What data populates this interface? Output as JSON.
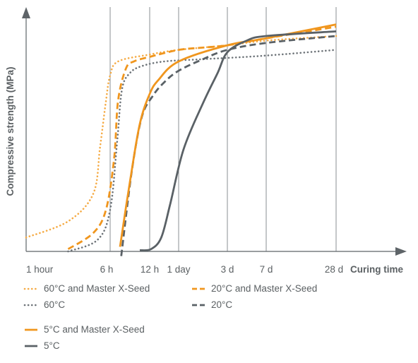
{
  "chart_data": {
    "type": "line",
    "xlabel": "Curing time",
    "ylabel": "Compressive strength (MPa)",
    "x_ticks": [
      "1 hour",
      "6 h",
      "12 h",
      "1 day",
      "3 d",
      "7 d",
      "28 d"
    ],
    "x_positions": [
      0,
      1,
      2,
      3,
      4,
      5,
      6
    ],
    "x_scale": "nonlinear (categorical time marks)",
    "y_scale": "relative, no ticks",
    "ylim": [
      0,
      100
    ],
    "grid": "vertical lines at each time mark except 1 hour",
    "colors": {
      "orange": "#f0961e",
      "gray": "#5a6166",
      "dotted_gray": "#6e7479"
    },
    "series": [
      {
        "name": "60°C and Master X-Seed",
        "color": "#f5ab45",
        "dash": "dotted",
        "points": [
          [
            0,
            6
          ],
          [
            0.5,
            13
          ],
          [
            0.8,
            25
          ],
          [
            0.88,
            45
          ],
          [
            0.95,
            65
          ],
          [
            1.0,
            76
          ],
          [
            1.2,
            82
          ],
          [
            2.0,
            85
          ],
          [
            3.0,
            87
          ],
          [
            4.0,
            89
          ],
          [
            5.0,
            91
          ],
          [
            6.0,
            93
          ]
        ]
      },
      {
        "name": "20°C and Master X-Seed",
        "color": "#f0961e",
        "dash": "dashed",
        "points": [
          [
            0.5,
            1
          ],
          [
            0.8,
            8
          ],
          [
            0.95,
            18
          ],
          [
            1.1,
            40
          ],
          [
            1.2,
            65
          ],
          [
            1.4,
            79
          ],
          [
            1.6,
            82
          ],
          [
            2.0,
            84
          ],
          [
            3.0,
            87
          ],
          [
            3.5,
            88
          ],
          [
            4.0,
            89
          ],
          [
            5.0,
            92
          ],
          [
            6.0,
            97
          ]
        ]
      },
      {
        "name": "60°C",
        "color": "#6e7479",
        "dash": "dotted",
        "points": [
          [
            0.5,
            0
          ],
          [
            0.85,
            5
          ],
          [
            1.0,
            18
          ],
          [
            1.18,
            48
          ],
          [
            1.3,
            70
          ],
          [
            1.5,
            77
          ],
          [
            1.8,
            80
          ],
          [
            2.5,
            82
          ],
          [
            3.5,
            83
          ],
          [
            4.5,
            84
          ],
          [
            5.2,
            85
          ],
          [
            6.0,
            87
          ]
        ]
      },
      {
        "name": "20°C",
        "color": "#5a6166",
        "dash": "dashed",
        "points": [
          [
            1.28,
            -2
          ],
          [
            1.55,
            35
          ],
          [
            1.8,
            58
          ],
          [
            2.1,
            67
          ],
          [
            2.5,
            73
          ],
          [
            3.0,
            78
          ],
          [
            3.5,
            83
          ],
          [
            4.0,
            87
          ],
          [
            5.0,
            90
          ],
          [
            6.0,
            93
          ]
        ]
      },
      {
        "name": "5°C and Master X-Seed",
        "color": "#f0961e",
        "dash": "solid",
        "points": [
          [
            1.25,
            2
          ],
          [
            1.5,
            30
          ],
          [
            1.75,
            55
          ],
          [
            2.0,
            68
          ],
          [
            2.3,
            74
          ],
          [
            3.0,
            82
          ],
          [
            4.0,
            89
          ],
          [
            5.0,
            92
          ],
          [
            6.0,
            98
          ]
        ]
      },
      {
        "name": "5°C",
        "color": "#5a6166",
        "dash": "solid",
        "points": [
          [
            1.75,
            0.5
          ],
          [
            2.05,
            1
          ],
          [
            2.4,
            6
          ],
          [
            2.7,
            20
          ],
          [
            3.1,
            44
          ],
          [
            3.5,
            64
          ],
          [
            3.8,
            77
          ],
          [
            4.0,
            86
          ],
          [
            4.5,
            91
          ],
          [
            5.0,
            93
          ],
          [
            6.0,
            95
          ]
        ]
      }
    ]
  },
  "legend": [
    {
      "label": "60°C and Master X-Seed",
      "color": "#f5ab45",
      "dash": "dotted"
    },
    {
      "label": "20°C and Master X-Seed",
      "color": "#f0961e",
      "dash": "dashed"
    },
    {
      "label": "60°C",
      "color": "#6e7479",
      "dash": "dotted"
    },
    {
      "label": "20°C",
      "color": "#5a6166",
      "dash": "dashed"
    },
    {
      "label": "5°C and Master X-Seed",
      "color": "#f0961e",
      "dash": "solid"
    },
    {
      "label": "5°C",
      "color": "#5a6166",
      "dash": "solid"
    }
  ]
}
